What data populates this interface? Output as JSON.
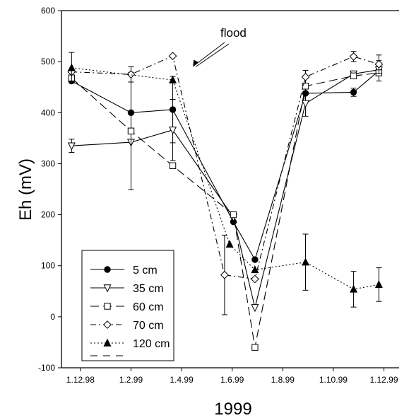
{
  "chart_data": {
    "type": "line",
    "xlabel": "1999",
    "ylabel": "Eh (mV)",
    "ylim": [
      -100,
      600
    ],
    "yticks": [
      -100,
      0,
      100,
      200,
      300,
      400,
      500,
      600
    ],
    "x_ticks": [
      {
        "pos": 0,
        "label": "1.12.98"
      },
      {
        "pos": 2,
        "label": "1.2.99"
      },
      {
        "pos": 4,
        "label": "1.4.99"
      },
      {
        "pos": 6,
        "label": "1.6.99"
      },
      {
        "pos": 8,
        "label": "1.8.99"
      },
      {
        "pos": 10,
        "label": "1.10.99"
      },
      {
        "pos": 12,
        "label": "1.12.99"
      }
    ],
    "xlim": [
      -0.75,
      12.6
    ],
    "annotation": {
      "text": "flood",
      "x": 4.45,
      "y": 490
    },
    "legend_placement": "bottom-left",
    "series": [
      {
        "name": "5 cm",
        "marker": "circle",
        "fill": "black",
        "dash": "",
        "points": [
          {
            "x": -0.35,
            "y": 462,
            "err": null
          },
          {
            "x": 2.0,
            "y": 400,
            "err": null
          },
          {
            "x": 3.65,
            "y": 406,
            "err": 65
          },
          {
            "x": 6.05,
            "y": 186,
            "err": null
          },
          {
            "x": 6.9,
            "y": 112,
            "err": null
          },
          {
            "x": 8.9,
            "y": 438,
            "err": 45
          },
          {
            "x": 10.8,
            "y": 440,
            "err": 8
          },
          {
            "x": 11.8,
            "y": 482,
            "err": 20
          }
        ]
      },
      {
        "name": "35 cm",
        "marker": "triangle-down",
        "fill": "white",
        "dash": "",
        "points": [
          {
            "x": -0.35,
            "y": 335,
            "err": 13
          },
          {
            "x": 2.0,
            "y": 342,
            "err": null
          },
          {
            "x": 3.65,
            "y": 366,
            "err": 60
          },
          {
            "x": 6.05,
            "y": 195,
            "err": null
          },
          {
            "x": 6.9,
            "y": 18,
            "err": null
          },
          {
            "x": 8.9,
            "y": 418,
            "err": null
          },
          {
            "x": 10.8,
            "y": 476,
            "err": null
          },
          {
            "x": 11.8,
            "y": 484,
            "err": null
          }
        ]
      },
      {
        "name": "60 cm",
        "marker": "square",
        "fill": "white",
        "dash": "12 6",
        "points": [
          {
            "x": -0.35,
            "y": 468,
            "err": null
          },
          {
            "x": 2.0,
            "y": 364,
            "err": 115
          },
          {
            "x": 3.65,
            "y": 296,
            "err": null
          },
          {
            "x": 6.05,
            "y": 200,
            "err": null
          },
          {
            "x": 6.9,
            "y": -60,
            "err": null
          },
          {
            "x": 8.9,
            "y": 452,
            "err": null
          },
          {
            "x": 10.8,
            "y": 472,
            "err": null
          },
          {
            "x": 11.8,
            "y": 478,
            "err": null
          }
        ]
      },
      {
        "name": "70 cm",
        "marker": "diamond",
        "fill": "white",
        "dash": "8 4 2 4",
        "points": [
          {
            "x": -0.35,
            "y": 480,
            "err": null
          },
          {
            "x": 2.0,
            "y": 475,
            "err": 15
          },
          {
            "x": 3.65,
            "y": 511,
            "err": null
          },
          {
            "x": 5.7,
            "y": 82,
            "err": 78
          },
          {
            "x": 6.9,
            "y": 74,
            "err": null
          },
          {
            "x": 8.9,
            "y": 470,
            "err": null
          },
          {
            "x": 10.8,
            "y": 510,
            "err": 10
          },
          {
            "x": 11.8,
            "y": 495,
            "err": 18
          }
        ]
      },
      {
        "name": "120 cm",
        "marker": "triangle-up",
        "fill": "black",
        "dash": "2 3",
        "points": [
          {
            "x": -0.35,
            "y": 488,
            "err": 30
          },
          {
            "x": 3.65,
            "y": 464,
            "err": null
          },
          {
            "x": 5.9,
            "y": 142,
            "err": null
          },
          {
            "x": 6.9,
            "y": 92,
            "err": null
          },
          {
            "x": 8.9,
            "y": 107,
            "err": 55
          },
          {
            "x": 10.8,
            "y": 54,
            "err": 35
          },
          {
            "x": 11.8,
            "y": 63,
            "err": 33
          }
        ]
      }
    ]
  }
}
